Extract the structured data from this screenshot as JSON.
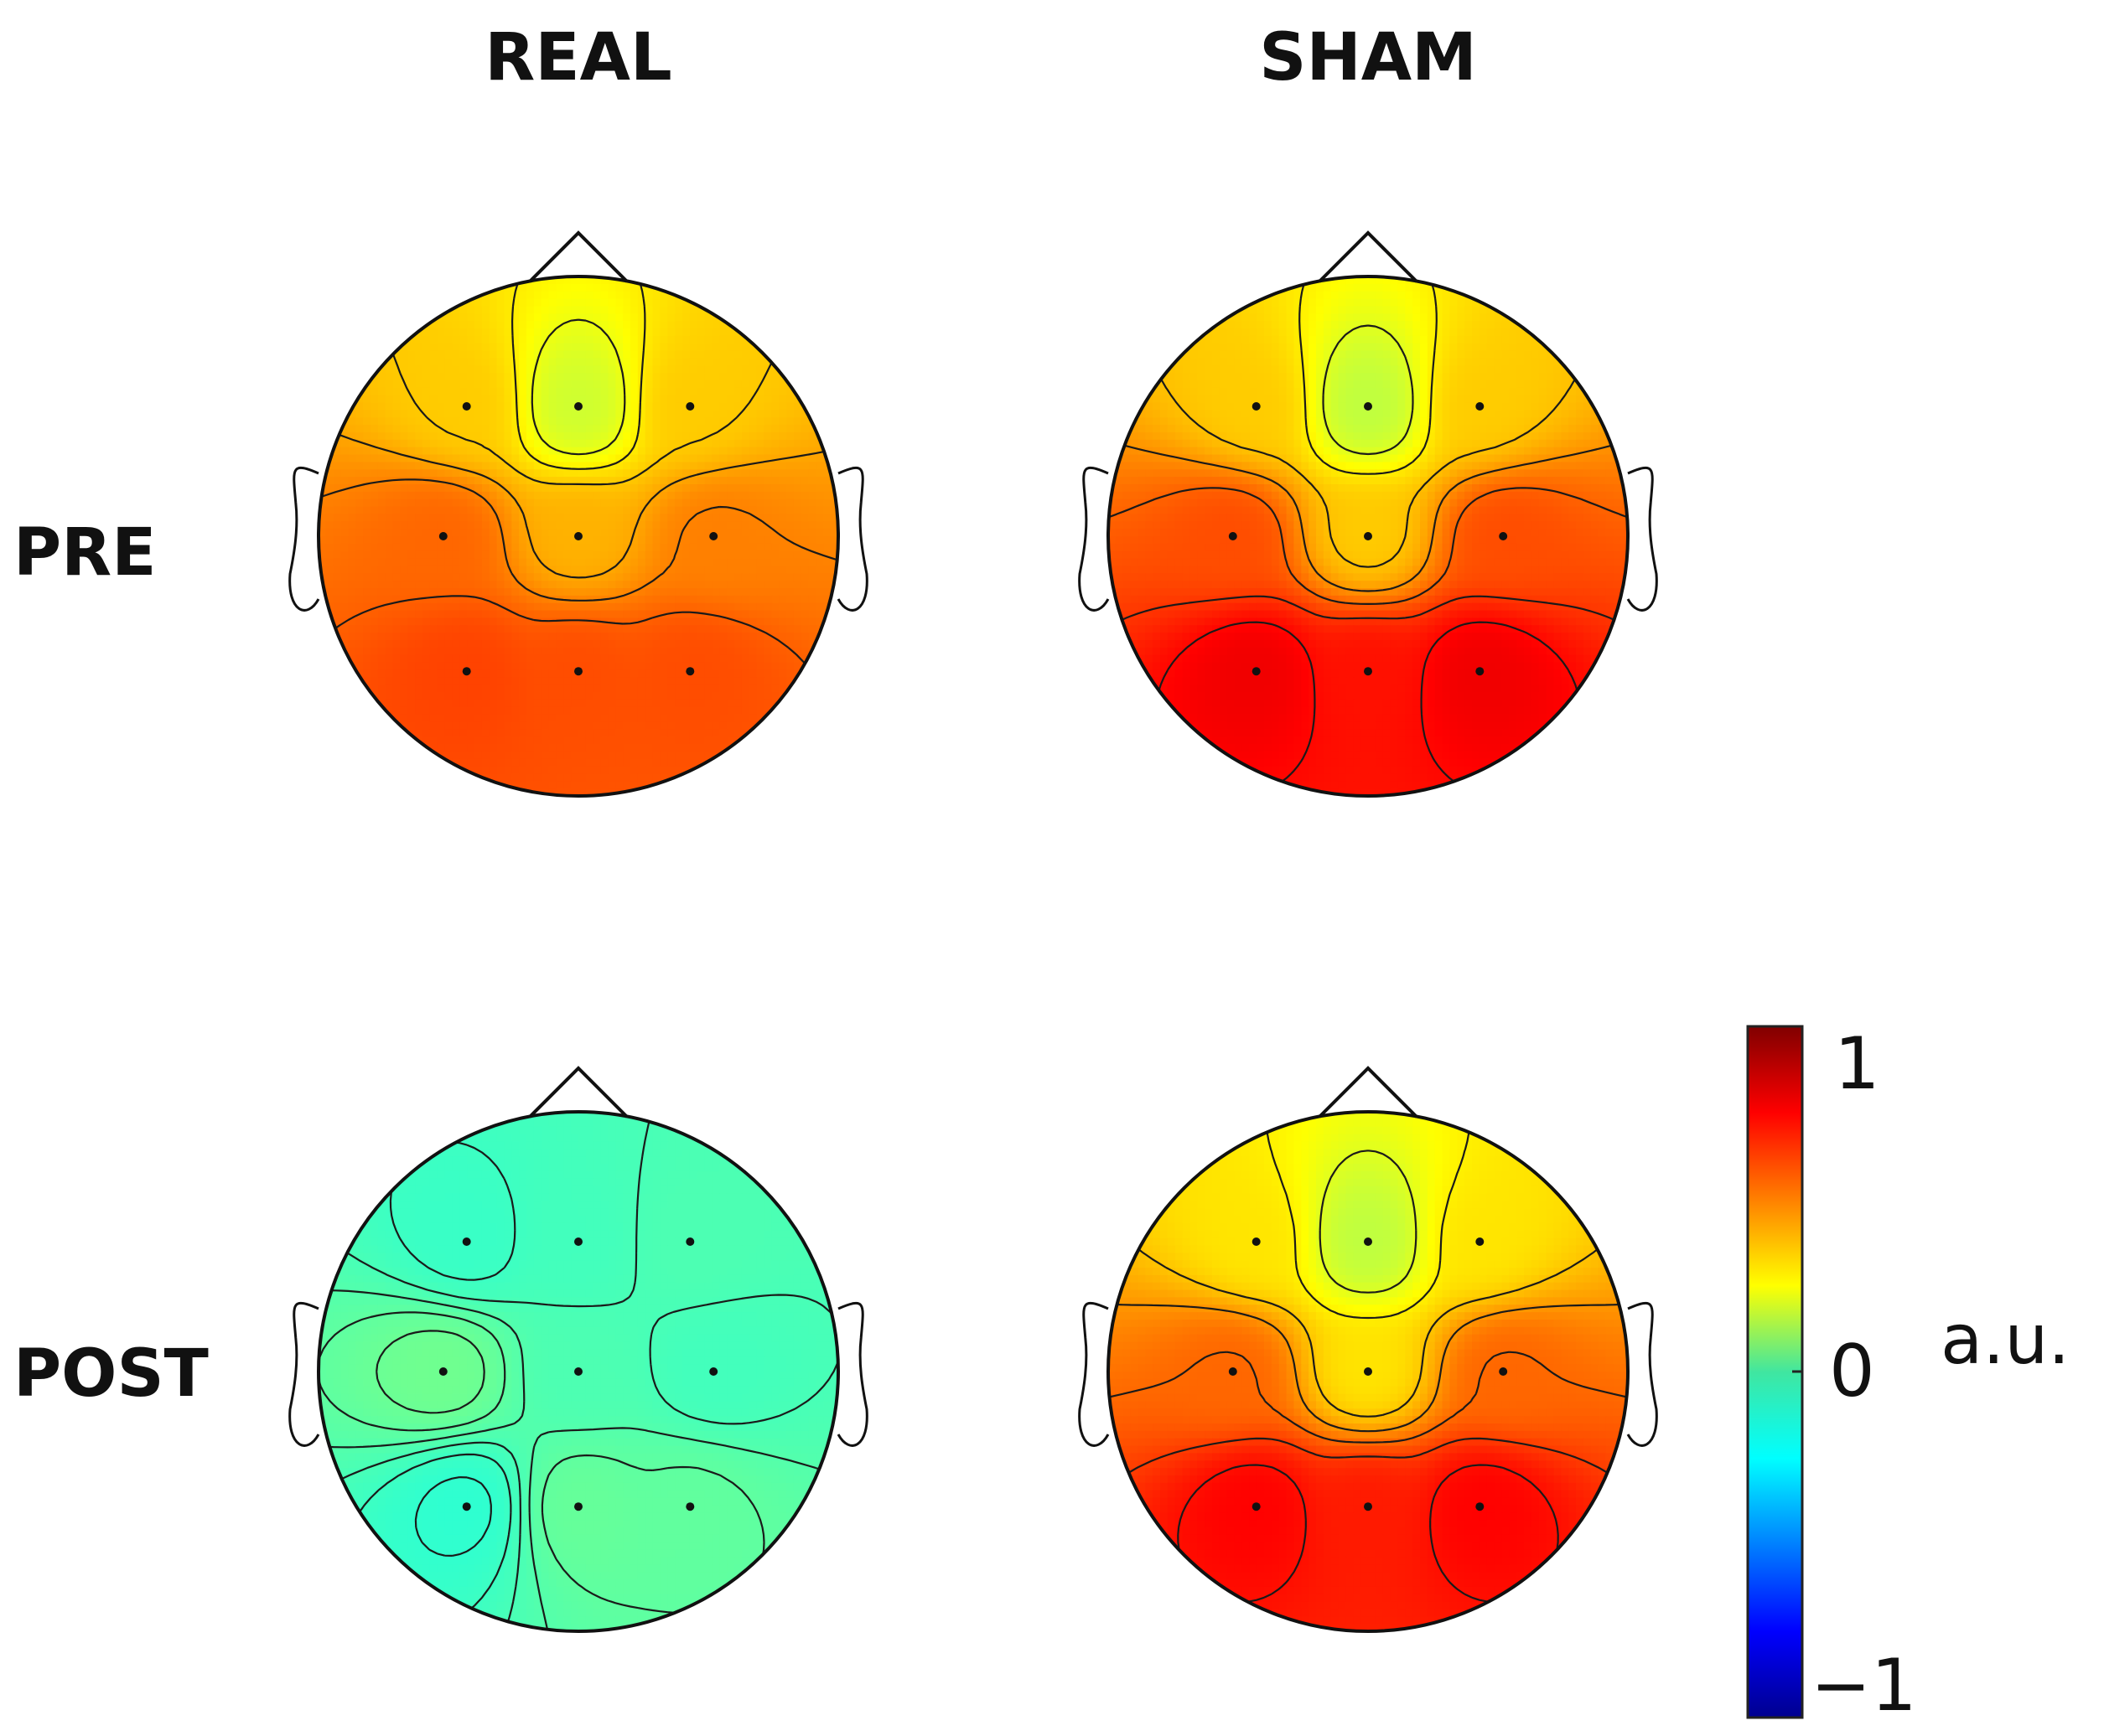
{
  "chart_data": {
    "type": "heatmap",
    "columns": [
      "REAL",
      "SHAM"
    ],
    "rows": [
      "PRE",
      "POST"
    ],
    "colorbar": {
      "min": -1,
      "max": 1,
      "ticks": [
        {
          "value": 1,
          "label": "1"
        },
        {
          "value": 0,
          "label": "0"
        },
        {
          "value": -1,
          "label": "−1"
        }
      ],
      "unit": "a.u.",
      "colormap": "jet"
    },
    "panels": [
      {
        "row": "PRE",
        "column": "REAL",
        "minimum": 0.08,
        "maximum": 0.7,
        "electrodes": [
          {
            "pos": "F3",
            "v": 0.35
          },
          {
            "pos": "Fz",
            "v": 0.15
          },
          {
            "pos": "F4",
            "v": 0.35
          },
          {
            "pos": "C3",
            "v": 0.55
          },
          {
            "pos": "Cz",
            "v": 0.4
          },
          {
            "pos": "C4",
            "v": 0.5
          },
          {
            "pos": "P3",
            "v": 0.62
          },
          {
            "pos": "Pz",
            "v": 0.6
          },
          {
            "pos": "P4",
            "v": 0.6
          }
        ]
      },
      {
        "row": "PRE",
        "column": "SHAM",
        "minimum": 0.1,
        "maximum": 0.92,
        "electrodes": [
          {
            "pos": "F3",
            "v": 0.35
          },
          {
            "pos": "Fz",
            "v": 0.12
          },
          {
            "pos": "F4",
            "v": 0.35
          },
          {
            "pos": "C3",
            "v": 0.6
          },
          {
            "pos": "Cz",
            "v": 0.35
          },
          {
            "pos": "C4",
            "v": 0.6
          },
          {
            "pos": "P3",
            "v": 0.78
          },
          {
            "pos": "Pz",
            "v": 0.72
          },
          {
            "pos": "P4",
            "v": 0.78
          }
        ]
      },
      {
        "row": "POST",
        "column": "REAL",
        "minimum": -0.22,
        "maximum": -0.02,
        "electrodes": [
          {
            "pos": "F3",
            "v": -0.14
          },
          {
            "pos": "Fz",
            "v": -0.12
          },
          {
            "pos": "F4",
            "v": -0.1
          },
          {
            "pos": "C3",
            "v": -0.03
          },
          {
            "pos": "Cz",
            "v": -0.1
          },
          {
            "pos": "C4",
            "v": -0.12
          },
          {
            "pos": "P3",
            "v": -0.16
          },
          {
            "pos": "Pz",
            "v": -0.05
          },
          {
            "pos": "P4",
            "v": -0.06
          }
        ]
      },
      {
        "row": "POST",
        "column": "SHAM",
        "minimum": 0.1,
        "maximum": 0.9,
        "electrodes": [
          {
            "pos": "F3",
            "v": 0.3
          },
          {
            "pos": "Fz",
            "v": 0.12
          },
          {
            "pos": "F4",
            "v": 0.3
          },
          {
            "pos": "C3",
            "v": 0.55
          },
          {
            "pos": "Cz",
            "v": 0.3
          },
          {
            "pos": "C4",
            "v": 0.55
          },
          {
            "pos": "P3",
            "v": 0.75
          },
          {
            "pos": "Pz",
            "v": 0.7
          },
          {
            "pos": "P4",
            "v": 0.75
          }
        ]
      }
    ]
  }
}
